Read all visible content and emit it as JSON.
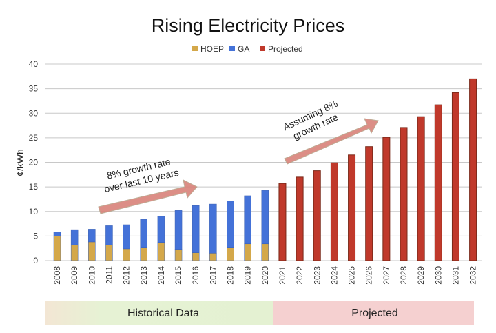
{
  "chart_data": {
    "type": "bar",
    "title": "Rising Electricity Prices",
    "ylabel": "¢/kWh",
    "xlabel": "",
    "ylim": [
      0,
      40
    ],
    "yticks": [
      0,
      5,
      10,
      15,
      20,
      25,
      30,
      35,
      40
    ],
    "grid": true,
    "legend_position": "top-center",
    "categories": [
      "2008",
      "2009",
      "2010",
      "2011",
      "2012",
      "2013",
      "2014",
      "2015",
      "2016",
      "2017",
      "2018",
      "2019",
      "2020",
      "2021",
      "2022",
      "2023",
      "2024",
      "2025",
      "2026",
      "2027",
      "2028",
      "2029",
      "2030",
      "2031",
      "2032"
    ],
    "series": [
      {
        "name": "HOEP",
        "color": "#d4a84a",
        "values": [
          5.0,
          3.2,
          3.8,
          3.2,
          2.4,
          2.7,
          3.7,
          2.3,
          1.6,
          1.5,
          2.7,
          3.4,
          3.4,
          null,
          null,
          null,
          null,
          null,
          null,
          null,
          null,
          null,
          null,
          null,
          null
        ]
      },
      {
        "name": "GA",
        "color": "#4472d8",
        "values": [
          0.8,
          3.1,
          2.6,
          3.9,
          4.9,
          5.7,
          5.3,
          7.9,
          9.6,
          10.0,
          9.4,
          9.8,
          10.9,
          null,
          null,
          null,
          null,
          null,
          null,
          null,
          null,
          null,
          null,
          null,
          null
        ]
      },
      {
        "name": "Projected",
        "color": "#c0392b",
        "values": [
          null,
          null,
          null,
          null,
          null,
          null,
          null,
          null,
          null,
          null,
          null,
          null,
          null,
          15.7,
          17.0,
          18.3,
          19.9,
          21.5,
          23.2,
          25.1,
          27.1,
          29.3,
          31.7,
          34.2,
          37.0
        ]
      }
    ],
    "annotations": [
      {
        "text_lines": [
          "8% growth rate",
          "over last 10 years"
        ]
      },
      {
        "text_lines": [
          "Assuming 8%",
          "growth rate"
        ]
      }
    ],
    "bands": [
      {
        "label": "Historical Data",
        "color": "#e6f2d4"
      },
      {
        "label": "Projected",
        "color": "#f5d0d0"
      }
    ]
  }
}
